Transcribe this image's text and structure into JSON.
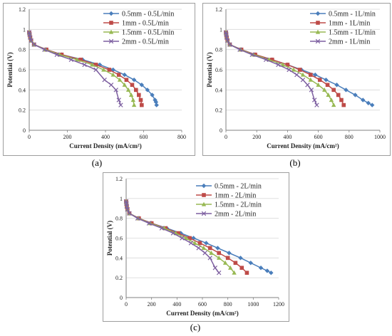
{
  "captions": [
    "(a)",
    "(b)",
    "(c)"
  ],
  "colors": {
    "s05": "#4a7ebb",
    "s1": "#be4b48",
    "s15": "#98b954",
    "s2": "#7d5fa0",
    "grid": "#d9d9d9",
    "axis": "#808080"
  },
  "chart_data": [
    {
      "type": "line",
      "xlabel": "Current Density (mA/cm²)",
      "ylabel": "Potential (V)",
      "xlim": [
        0,
        800
      ],
      "ylim": [
        0,
        1.2
      ],
      "xticks": [
        0,
        200,
        400,
        600,
        800
      ],
      "yticks": [
        0,
        0.2,
        0.4,
        0.6,
        0.8,
        1,
        1.2
      ],
      "legend": "top-right",
      "series": [
        {
          "name": "0.5mm - 0.5L/min",
          "marker": "diamond",
          "color": "#4a7ebb",
          "x": [
            0,
            2,
            5,
            10,
            25,
            90,
            170,
            280,
            370,
            440,
            500,
            550,
            590,
            620,
            645,
            660,
            665,
            668
          ],
          "y": [
            0.97,
            0.95,
            0.92,
            0.89,
            0.85,
            0.8,
            0.75,
            0.7,
            0.65,
            0.6,
            0.55,
            0.5,
            0.45,
            0.4,
            0.35,
            0.3,
            0.28,
            0.25
          ]
        },
        {
          "name": "1mm - 0.5L/min",
          "marker": "square",
          "color": "#be4b48",
          "x": [
            0,
            2,
            5,
            10,
            25,
            90,
            170,
            270,
            350,
            420,
            470,
            510,
            540,
            560,
            575,
            585,
            590
          ],
          "y": [
            0.97,
            0.95,
            0.92,
            0.89,
            0.85,
            0.8,
            0.75,
            0.7,
            0.65,
            0.6,
            0.55,
            0.5,
            0.45,
            0.4,
            0.35,
            0.3,
            0.25
          ]
        },
        {
          "name": "1.5mm - 0.5L/min",
          "marker": "triangle",
          "color": "#98b954",
          "x": [
            0,
            2,
            5,
            10,
            25,
            85,
            160,
            250,
            330,
            390,
            440,
            475,
            500,
            520,
            535,
            545,
            550
          ],
          "y": [
            0.97,
            0.95,
            0.92,
            0.89,
            0.85,
            0.8,
            0.75,
            0.7,
            0.65,
            0.6,
            0.55,
            0.5,
            0.45,
            0.4,
            0.35,
            0.3,
            0.25
          ]
        },
        {
          "name": "2mm - 0.5L/min",
          "marker": "x",
          "color": "#7d5fa0",
          "x": [
            0,
            2,
            5,
            10,
            25,
            80,
            145,
            220,
            290,
            350,
            395,
            430,
            455,
            470,
            480
          ],
          "y": [
            0.97,
            0.95,
            0.92,
            0.89,
            0.85,
            0.8,
            0.75,
            0.7,
            0.65,
            0.6,
            0.5,
            0.45,
            0.4,
            0.3,
            0.25
          ]
        }
      ]
    },
    {
      "type": "line",
      "xlabel": "Current Density (mA/cm²)",
      "ylabel": "Potential (V)",
      "xlim": [
        0,
        1000
      ],
      "ylim": [
        0,
        1.2
      ],
      "xticks": [
        0,
        200,
        400,
        600,
        800,
        1000
      ],
      "yticks": [
        0,
        0.2,
        0.4,
        0.6,
        0.8,
        1,
        1.2
      ],
      "legend": "top-right",
      "series": [
        {
          "name": "0.5mm - 1L/min",
          "marker": "diamond",
          "color": "#4a7ebb",
          "x": [
            0,
            2,
            5,
            10,
            25,
            100,
            190,
            300,
            400,
            490,
            580,
            650,
            720,
            780,
            840,
            890,
            925,
            950
          ],
          "y": [
            0.97,
            0.95,
            0.92,
            0.89,
            0.85,
            0.8,
            0.75,
            0.7,
            0.65,
            0.6,
            0.55,
            0.5,
            0.45,
            0.4,
            0.35,
            0.3,
            0.27,
            0.25
          ]
        },
        {
          "name": "1mm - 1L/min",
          "marker": "square",
          "color": "#be4b48",
          "x": [
            0,
            2,
            5,
            10,
            25,
            100,
            190,
            300,
            400,
            480,
            550,
            610,
            660,
            700,
            730,
            750,
            765
          ],
          "y": [
            0.97,
            0.95,
            0.92,
            0.89,
            0.85,
            0.8,
            0.75,
            0.7,
            0.65,
            0.6,
            0.55,
            0.5,
            0.45,
            0.4,
            0.35,
            0.3,
            0.25
          ]
        },
        {
          "name": "1.5mm - 1L/min",
          "marker": "triangle",
          "color": "#98b954",
          "x": [
            0,
            2,
            5,
            10,
            25,
            95,
            180,
            280,
            370,
            440,
            500,
            550,
            600,
            640,
            665,
            685,
            700
          ],
          "y": [
            0.97,
            0.95,
            0.92,
            0.89,
            0.85,
            0.8,
            0.75,
            0.7,
            0.65,
            0.6,
            0.55,
            0.5,
            0.45,
            0.4,
            0.35,
            0.3,
            0.25
          ]
        },
        {
          "name": "2mm - 1L/min",
          "marker": "x",
          "color": "#7d5fa0",
          "x": [
            0,
            2,
            5,
            10,
            25,
            90,
            170,
            260,
            340,
            410,
            460,
            500,
            530,
            555,
            575,
            590
          ],
          "y": [
            0.97,
            0.95,
            0.92,
            0.89,
            0.85,
            0.8,
            0.75,
            0.7,
            0.65,
            0.6,
            0.55,
            0.5,
            0.45,
            0.4,
            0.3,
            0.25
          ]
        }
      ]
    },
    {
      "type": "line",
      "xlabel": "Current Density (mA/cm²)",
      "ylabel": "Potential (V)",
      "xlim": [
        0,
        1200
      ],
      "ylim": [
        0,
        1.2
      ],
      "xticks": [
        0,
        200,
        400,
        600,
        800,
        1000,
        1200
      ],
      "yticks": [
        0,
        0.2,
        0.4,
        0.6,
        0.8,
        1,
        1.2
      ],
      "legend": "top-right",
      "series": [
        {
          "name": "0.5mm - 2L/min",
          "marker": "diamond",
          "color": "#4a7ebb",
          "x": [
            0,
            2,
            5,
            10,
            25,
            100,
            200,
            320,
            430,
            530,
            630,
            720,
            810,
            900,
            980,
            1060,
            1110,
            1140
          ],
          "y": [
            0.97,
            0.95,
            0.92,
            0.89,
            0.85,
            0.8,
            0.75,
            0.7,
            0.65,
            0.6,
            0.55,
            0.5,
            0.45,
            0.4,
            0.35,
            0.3,
            0.27,
            0.25
          ]
        },
        {
          "name": "1mm - 2L/min",
          "marker": "square",
          "color": "#be4b48",
          "x": [
            0,
            2,
            5,
            10,
            25,
            100,
            200,
            310,
            410,
            500,
            580,
            660,
            730,
            800,
            860,
            910,
            950
          ],
          "y": [
            0.97,
            0.95,
            0.92,
            0.89,
            0.85,
            0.8,
            0.75,
            0.7,
            0.65,
            0.6,
            0.55,
            0.5,
            0.45,
            0.4,
            0.35,
            0.3,
            0.25
          ]
        },
        {
          "name": "1.5mm - 2L/min",
          "marker": "triangle",
          "color": "#98b954",
          "x": [
            0,
            2,
            5,
            10,
            25,
            95,
            190,
            300,
            390,
            470,
            540,
            610,
            670,
            730,
            780,
            820,
            850
          ],
          "y": [
            0.97,
            0.95,
            0.92,
            0.89,
            0.85,
            0.8,
            0.75,
            0.7,
            0.65,
            0.6,
            0.55,
            0.5,
            0.45,
            0.4,
            0.35,
            0.3,
            0.25
          ]
        },
        {
          "name": "2mm - 2L/min",
          "marker": "x",
          "color": "#7d5fa0",
          "x": [
            0,
            2,
            5,
            10,
            25,
            90,
            180,
            280,
            370,
            440,
            510,
            570,
            620,
            660,
            700,
            730
          ],
          "y": [
            0.97,
            0.95,
            0.92,
            0.89,
            0.85,
            0.8,
            0.75,
            0.7,
            0.65,
            0.6,
            0.55,
            0.5,
            0.45,
            0.4,
            0.3,
            0.25
          ]
        }
      ]
    }
  ]
}
